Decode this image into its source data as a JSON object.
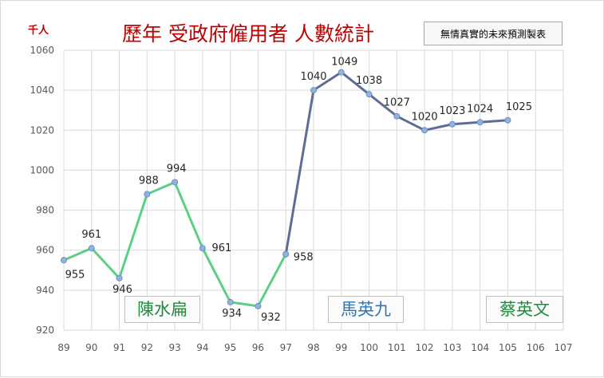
{
  "title": "歷年 受政府僱用者 人數統計",
  "unit_label": "千人",
  "note": "無情真實的未來預測製表",
  "colors": {
    "green_series": "#5ccf86",
    "blue_series": "#5e6d96",
    "marker": "#8fb4e2",
    "grid": "#d9d9d9",
    "axis_text": "#595959",
    "title": "#c00000"
  },
  "eras": [
    {
      "label": "陳水扁",
      "color": "#1b8f3a"
    },
    {
      "label": "馬英九",
      "color": "#2e75b6"
    },
    {
      "label": "蔡英文",
      "color": "#1b8f3a"
    }
  ],
  "chart_data": {
    "type": "line",
    "title": "歷年 受政府僱用者 人數統計",
    "ylabel": "千人",
    "xlabel": "",
    "x_categories": [
      "89",
      "90",
      "91",
      "92",
      "93",
      "94",
      "95",
      "96",
      "97",
      "98",
      "99",
      "100",
      "101",
      "102",
      "103",
      "104",
      "105",
      "106",
      "107"
    ],
    "ylim": [
      920,
      1060
    ],
    "yticks": [
      920,
      940,
      960,
      980,
      1000,
      1020,
      1040,
      1060
    ],
    "grid": true,
    "series": [
      {
        "x": [
          "89",
          "90",
          "91",
          "92",
          "93",
          "94",
          "95",
          "96",
          "97"
        ],
        "values": [
          955,
          961,
          946,
          988,
          994,
          961,
          934,
          932,
          958
        ],
        "color": "#5ccf86"
      },
      {
        "x": [
          "97",
          "98",
          "99",
          "100",
          "101",
          "102",
          "103",
          "104",
          "105"
        ],
        "values": [
          958,
          1040,
          1049,
          1038,
          1027,
          1020,
          1023,
          1024,
          1025
        ],
        "color": "#5e6d96"
      }
    ],
    "data_labels": [
      {
        "x": "89",
        "value": 955,
        "text": "955"
      },
      {
        "x": "90",
        "value": 961,
        "text": "961"
      },
      {
        "x": "91",
        "value": 946,
        "text": "946"
      },
      {
        "x": "92",
        "value": 988,
        "text": "988"
      },
      {
        "x": "93",
        "value": 994,
        "text": "994"
      },
      {
        "x": "94",
        "value": 961,
        "text": "961"
      },
      {
        "x": "95",
        "value": 934,
        "text": "934"
      },
      {
        "x": "96",
        "value": 932,
        "text": "932"
      },
      {
        "x": "97",
        "value": 958,
        "text": "958"
      },
      {
        "x": "98",
        "value": 1040,
        "text": "1040"
      },
      {
        "x": "99",
        "value": 1049,
        "text": "1049"
      },
      {
        "x": "100",
        "value": 1038,
        "text": "1038"
      },
      {
        "x": "101",
        "value": 1027,
        "text": "1027"
      },
      {
        "x": "102",
        "value": 1020,
        "text": "1020"
      },
      {
        "x": "103",
        "value": 1023,
        "text": "1023"
      },
      {
        "x": "104",
        "value": 1024,
        "text": "1024"
      },
      {
        "x": "105",
        "value": 1025,
        "text": "1025"
      }
    ]
  }
}
